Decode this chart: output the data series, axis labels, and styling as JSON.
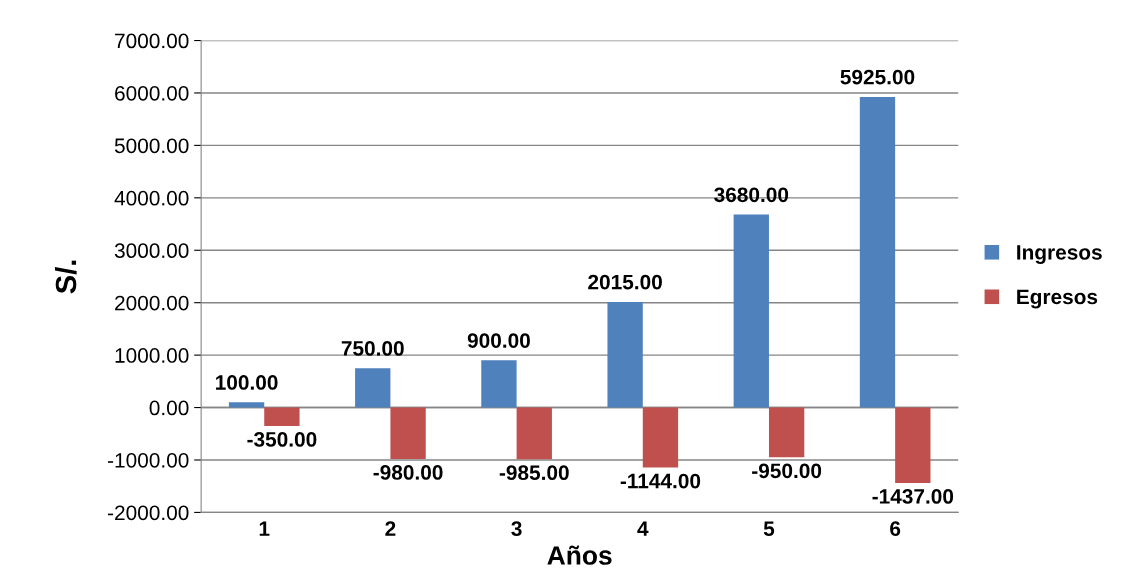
{
  "chart_data": {
    "type": "bar",
    "xlabel": "Años",
    "ylabel": "S/.",
    "categories": [
      "1",
      "2",
      "3",
      "4",
      "5",
      "6"
    ],
    "series": [
      {
        "name": "Ingresos",
        "color": "#4f81bd",
        "values": [
          100,
          750,
          900,
          2015,
          3680,
          5925
        ],
        "value_labels": [
          "100.00",
          "750.00",
          "900.00",
          "2015.00",
          "3680.00",
          "5925.00"
        ]
      },
      {
        "name": "Egresos",
        "color": "#c0504d",
        "values": [
          -350,
          -980,
          -985,
          -1144,
          -950,
          -1437
        ],
        "value_labels": [
          "-350.00",
          "-980.00",
          "-985.00",
          "-1144.00",
          "-950.00",
          "-1437.00"
        ]
      }
    ],
    "ylim": [
      -2000,
      7000
    ],
    "yticks": [
      {
        "value": -2000,
        "label": "-2000.00"
      },
      {
        "value": -1000,
        "label": "-1000.00"
      },
      {
        "value": 0,
        "label": "0.00"
      },
      {
        "value": 1000,
        "label": "1000.00"
      },
      {
        "value": 2000,
        "label": "2000.00"
      },
      {
        "value": 3000,
        "label": "3000.00"
      },
      {
        "value": 4000,
        "label": "4000.00"
      },
      {
        "value": 5000,
        "label": "5000.00"
      },
      {
        "value": 6000,
        "label": "6000.00"
      },
      {
        "value": 7000,
        "label": "7000.00"
      }
    ],
    "grid": "y",
    "legend": "right"
  }
}
